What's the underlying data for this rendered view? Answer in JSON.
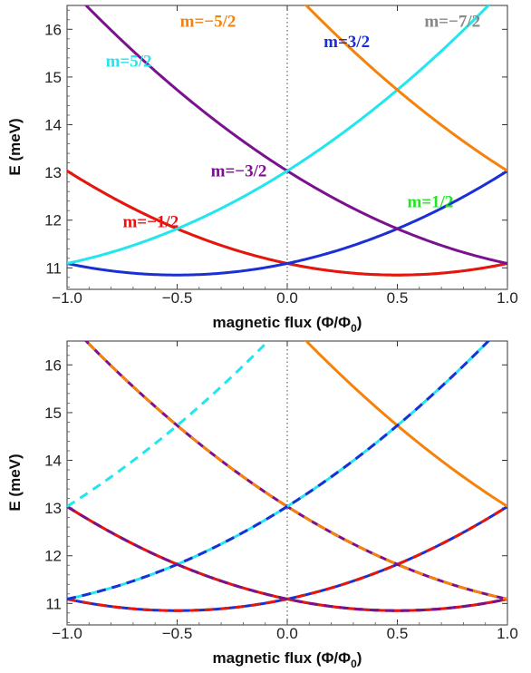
{
  "chart_data": [
    {
      "type": "line",
      "xlabel_main": "magnetic flux (Φ/Φ",
      "xlabel_sub": "0",
      "xlabel_close": ")",
      "ylabel": "E (meV)",
      "xlim": [
        -1.0,
        1.0
      ],
      "ylim": [
        10.55,
        16.5
      ],
      "xticks": [
        "−1.0",
        "−0.5",
        "0.0",
        "0.5",
        "1.0"
      ],
      "xtick_values": [
        -1.0,
        -0.5,
        0.0,
        0.5,
        1.0
      ],
      "yticks": [
        "11",
        "12",
        "13",
        "14",
        "15",
        "16"
      ],
      "ytick_values": [
        11,
        12,
        13,
        14,
        15,
        16
      ],
      "reference_line_x": 0.0,
      "base_energy": 10.85,
      "curvature": 0.97,
      "series": [
        {
          "m": 0.5,
          "shift": 1.0,
          "color": "#22e622",
          "dashed": false
        },
        {
          "m": -0.5,
          "shift": 0.0,
          "color": "#ee1111",
          "dashed": false
        },
        {
          "m": 1.5,
          "shift": 1.0,
          "color": "#1a2fd6",
          "dashed": false
        },
        {
          "m": -1.5,
          "shift": 0.0,
          "color": "#7a118f",
          "dashed": false
        },
        {
          "m": 2.5,
          "shift": 1.0,
          "color": "#22e6ee",
          "dashed": false
        },
        {
          "m": -2.5,
          "shift": 0.0,
          "color": "#f5820a",
          "dashed": false
        },
        {
          "m": -3.5,
          "shift": 0.0,
          "color": "#888888",
          "dashed": false
        }
      ],
      "labels": [
        {
          "text": "m=5/2",
          "x": -0.72,
          "y": 15.22,
          "color": "#22e6ee"
        },
        {
          "text": "m=−5/2",
          "x": -0.36,
          "y": 16.05,
          "color": "#f5820a"
        },
        {
          "text": "m=3/2",
          "x": 0.27,
          "y": 15.63,
          "color": "#1a2fd6"
        },
        {
          "text": "m=−7/2",
          "x": 0.75,
          "y": 16.05,
          "color": "#888888"
        },
        {
          "text": "m=−3/2",
          "x": -0.22,
          "y": 12.92,
          "color": "#7a118f"
        },
        {
          "text": "m=1/2",
          "x": 0.65,
          "y": 12.27,
          "color": "#22e622"
        },
        {
          "text": "m=−1/2",
          "x": -0.62,
          "y": 11.85,
          "color": "#ee1111"
        }
      ]
    },
    {
      "type": "line",
      "xlabel_main": "magnetic flux (Φ/Φ",
      "xlabel_sub": "0",
      "xlabel_close": ")",
      "ylabel": "E (meV)",
      "xlim": [
        -1.0,
        1.0
      ],
      "ylim": [
        10.55,
        16.5
      ],
      "xticks": [
        "−1.0",
        "−0.5",
        "0.0",
        "0.5",
        "1.0"
      ],
      "xtick_values": [
        -1.0,
        -0.5,
        0.0,
        0.5,
        1.0
      ],
      "yticks": [
        "11",
        "12",
        "13",
        "14",
        "15",
        "16"
      ],
      "ytick_values": [
        11,
        12,
        13,
        14,
        15,
        16
      ],
      "reference_line_x": 0.0,
      "base_energy": 10.85,
      "curvature": 0.97,
      "series": [
        {
          "m": 0.5,
          "shift": 1.0,
          "color": "#22e622",
          "dashed": false
        },
        {
          "m": -0.5,
          "shift": 0.0,
          "color": "#ee1111",
          "dashed": false
        },
        {
          "m": 1.5,
          "shift": 1.0,
          "color": "#1a2fd6",
          "dashed": false
        },
        {
          "m": -1.5,
          "shift": 0.0,
          "color": "#7a118f",
          "dashed": false
        },
        {
          "m": 2.5,
          "shift": 1.0,
          "color": "#22e6ee",
          "dashed": false
        },
        {
          "m": -2.5,
          "shift": 0.0,
          "color": "#f5820a",
          "dashed": false
        },
        {
          "m": -3.5,
          "shift": 0.0,
          "color": "#888888",
          "dashed": false
        },
        {
          "m": 0.5,
          "shift": 0.0,
          "color": "#22e622",
          "dashed": true
        },
        {
          "m": -0.5,
          "shift": -1.0,
          "color": "#ee1111",
          "dashed": true
        },
        {
          "m": 1.5,
          "shift": 0.0,
          "color": "#1a2fd6",
          "dashed": true
        },
        {
          "m": -1.5,
          "shift": -1.0,
          "color": "#7a118f",
          "dashed": true
        },
        {
          "m": 2.5,
          "shift": 0.0,
          "color": "#22e6ee",
          "dashed": true
        },
        {
          "m": -2.5,
          "shift": -1.0,
          "color": "#f5820a",
          "dashed": true
        },
        {
          "m": 3.5,
          "shift": 0.0,
          "color": "#888888",
          "dashed": true
        }
      ],
      "labels": []
    }
  ]
}
